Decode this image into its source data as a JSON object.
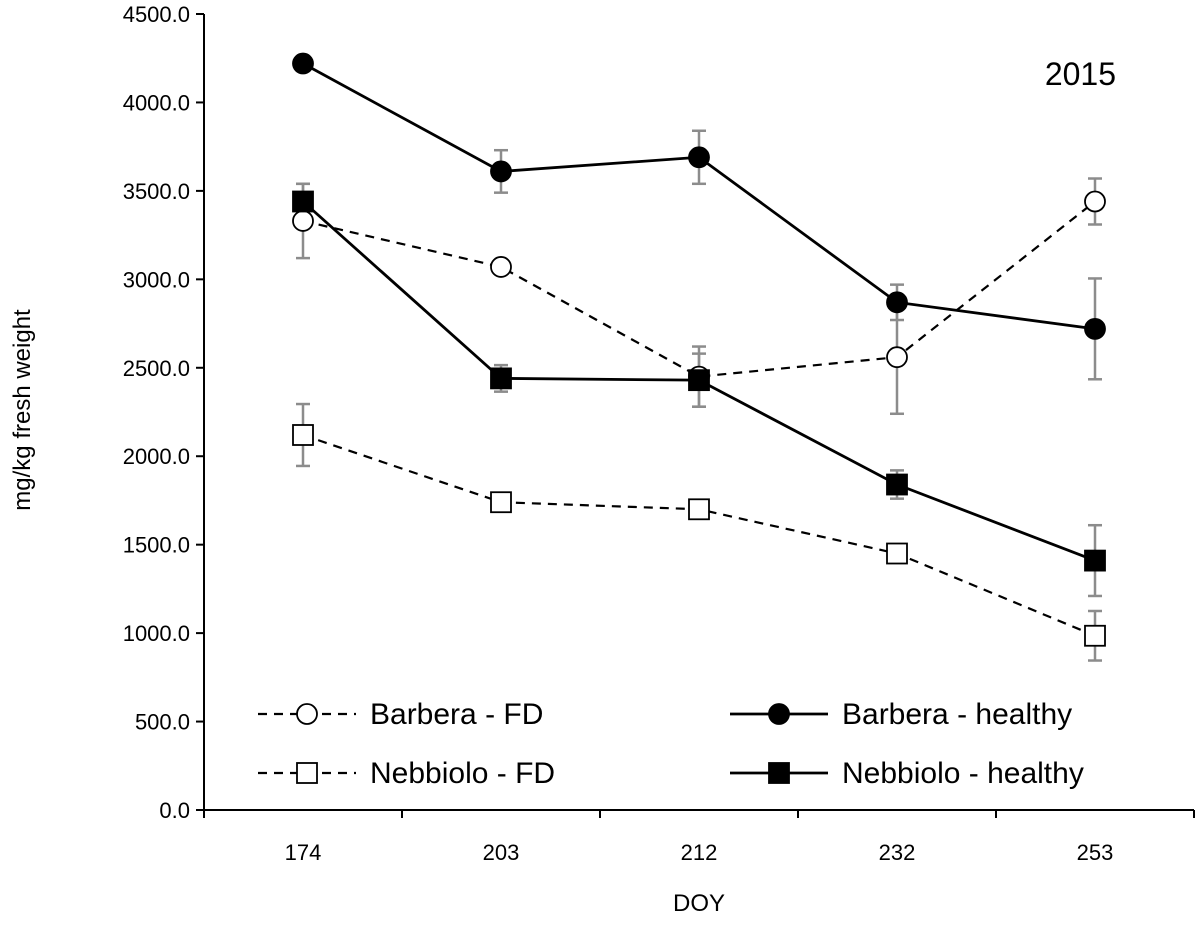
{
  "chart_data": {
    "type": "line",
    "title": "",
    "annotation": "2015",
    "xlabel": "DOY",
    "ylabel": "mg/kg fresh weight",
    "categories": [
      "174",
      "203",
      "212",
      "232",
      "253"
    ],
    "ylim": [
      0,
      4500
    ],
    "yticks": [
      0,
      500,
      1000,
      1500,
      2000,
      2500,
      3000,
      3500,
      4000,
      4500
    ],
    "ytick_labels": [
      "0.0",
      "500.0",
      "1000.0",
      "1500.0",
      "2000.0",
      "2500.0",
      "3000.0",
      "3500.0",
      "4000.0",
      "4500.0"
    ],
    "grid": false,
    "legend_position": "bottom",
    "series": [
      {
        "name": "Barbera - FD",
        "line_style": "dashed",
        "marker": "circle",
        "filled": false,
        "values": [
          3330,
          3070,
          2450,
          2560,
          3440
        ],
        "errors": [
          210,
          0,
          170,
          320,
          130
        ]
      },
      {
        "name": "Barbera - healthy",
        "line_style": "solid",
        "marker": "circle",
        "filled": true,
        "values": [
          4220,
          3610,
          3690,
          2870,
          2720
        ],
        "errors": [
          40,
          120,
          150,
          100,
          285
        ]
      },
      {
        "name": "Nebbiolo - FD",
        "line_style": "dashed",
        "marker": "square",
        "filled": false,
        "values": [
          2120,
          1740,
          1700,
          1450,
          985
        ],
        "errors": [
          175,
          0,
          0,
          0,
          140
        ]
      },
      {
        "name": "Nebbiolo - healthy",
        "line_style": "solid",
        "marker": "square",
        "filled": true,
        "values": [
          3440,
          2440,
          2430,
          1840,
          1410
        ],
        "errors": [
          100,
          75,
          150,
          80,
          200
        ]
      }
    ],
    "colors": {
      "line": "#000000",
      "error_bar": "#8c8c8c",
      "hollow_fill": "#ffffff"
    }
  }
}
